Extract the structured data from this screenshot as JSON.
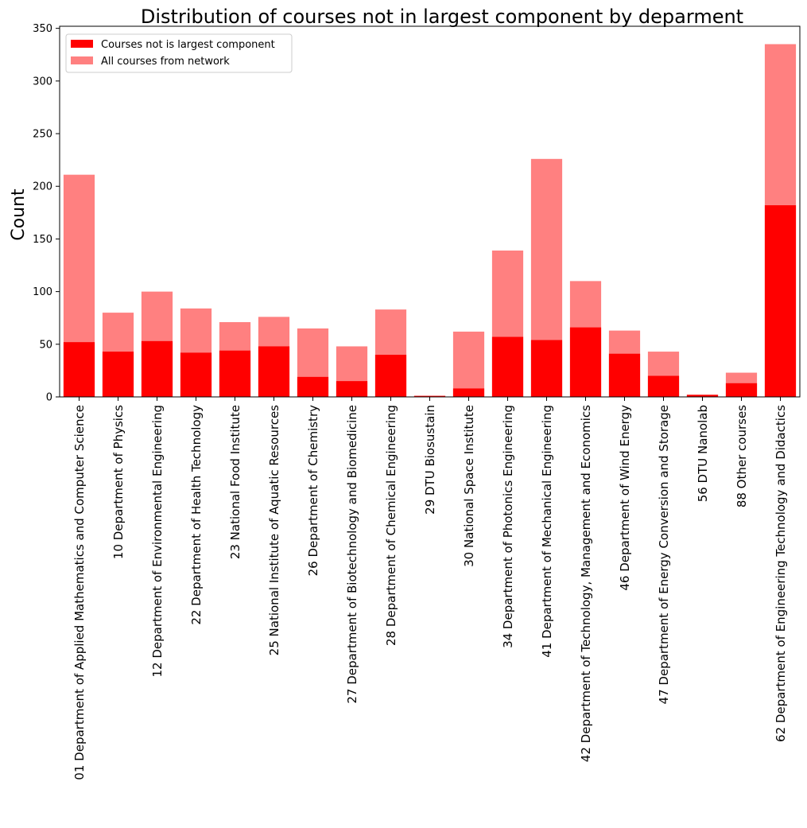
{
  "chart_data": {
    "type": "bar",
    "title": "Distribution of courses not in largest component by deparment",
    "xlabel": "",
    "ylabel": "Count",
    "ylim": [
      0,
      352
    ],
    "yticks": [
      0,
      50,
      100,
      150,
      200,
      250,
      300,
      350
    ],
    "grid": false,
    "legend_position": "top-left",
    "categories": [
      "01 Department of Applied Mathematics and Computer Science",
      "10 Department of Physics",
      "12 Department of Environmental Engineering",
      "22 Department of Health Technology",
      "23 National Food Institute",
      "25 National Institute of Aquatic Resources",
      "26 Department of Chemistry",
      "27 Department of Biotechnology and Biomedicine",
      "28 Department of Chemical Engineering",
      "29 DTU Biosustain",
      "30 National Space Institute",
      "34 Department of Photonics Engineering",
      "41 Department of Mechanical Engineering",
      "42 Department of Technology, Management and Economics",
      "46 Department of Wind Energy",
      "47 Department of Energy Conversion and Storage",
      "56 DTU Nanolab",
      "88 Other courses",
      "62 Department of Engineering Technology and Didactics"
    ],
    "series": [
      {
        "name": "Courses not is largest component",
        "color": "#ff0000",
        "values": [
          52,
          43,
          53,
          42,
          44,
          48,
          19,
          15,
          40,
          1,
          8,
          57,
          54,
          66,
          41,
          20,
          2,
          13,
          182
        ]
      },
      {
        "name": "All courses from network",
        "color": "#ff8080",
        "values": [
          211,
          80,
          100,
          84,
          71,
          76,
          65,
          48,
          83,
          1,
          62,
          139,
          226,
          110,
          63,
          43,
          2,
          23,
          335
        ]
      }
    ]
  }
}
